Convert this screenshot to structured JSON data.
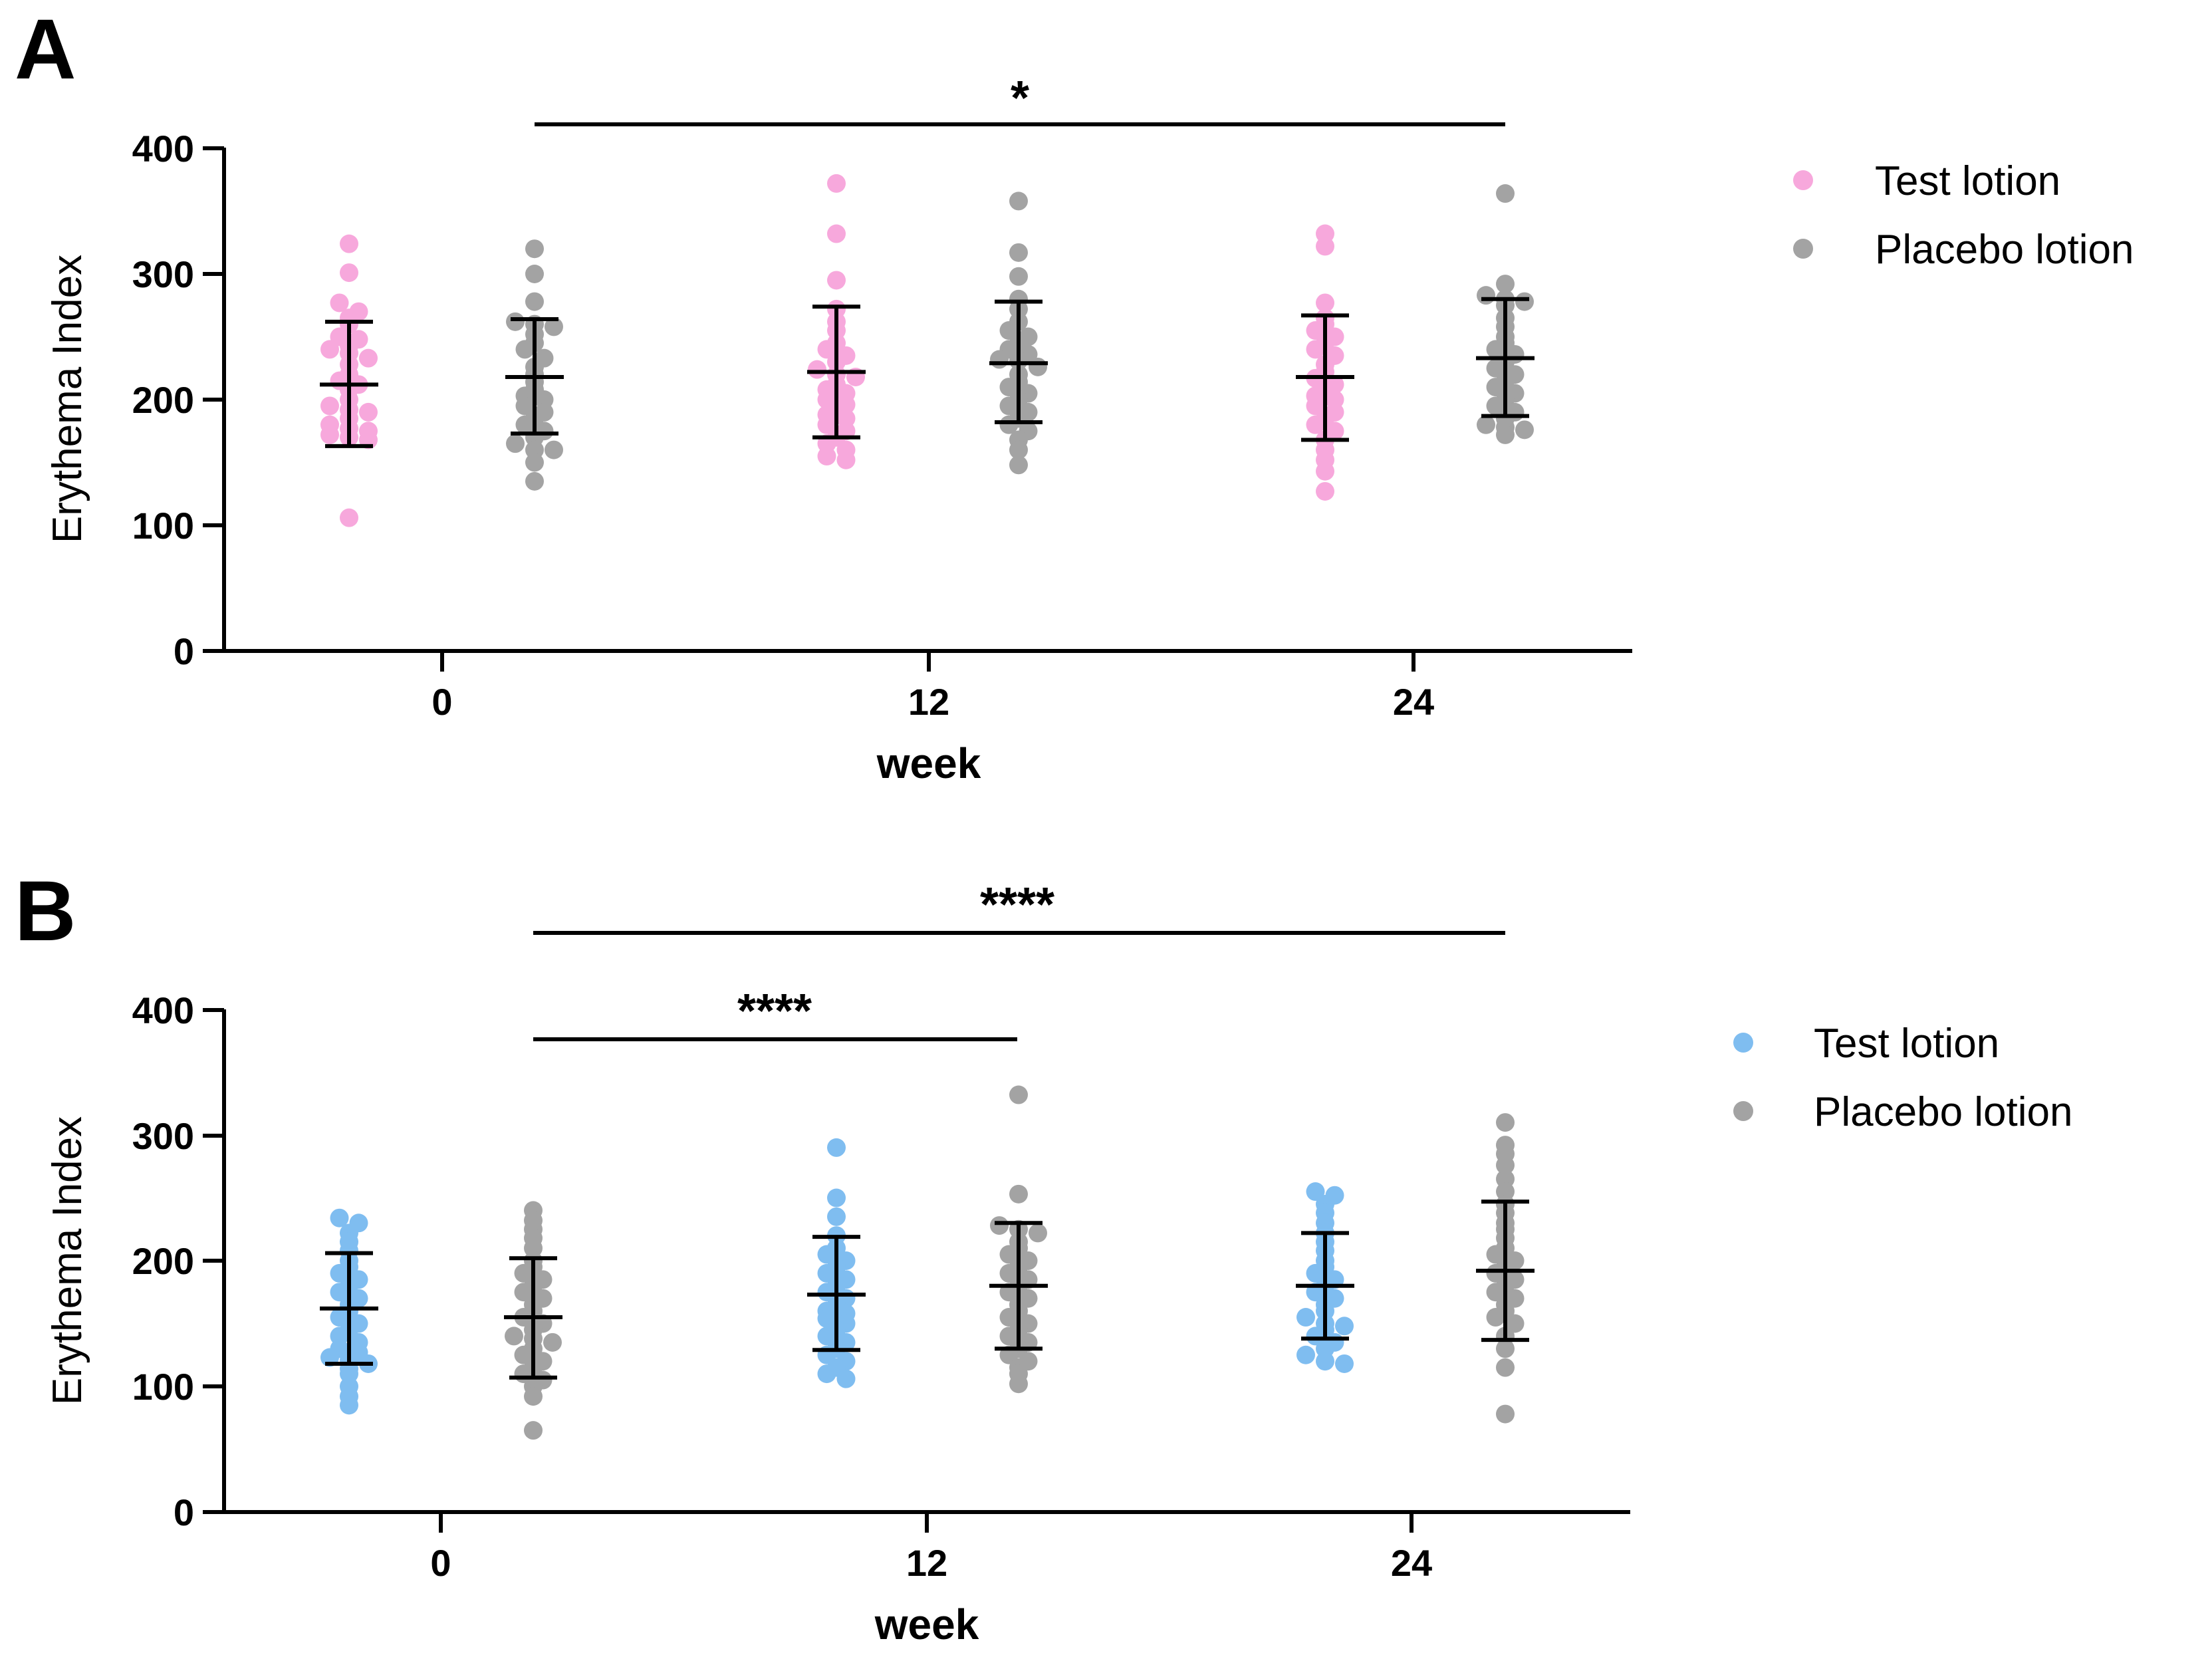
{
  "colors": {
    "test_A": "#f7a8dc",
    "test_B": "#7fbdf0",
    "placebo": "#a3a3a3",
    "axis": "#000000"
  },
  "chart_data": [
    {
      "panel": "A",
      "type": "scatter",
      "xlabel": "week",
      "ylabel": "Erythema Index",
      "ylim": [
        0,
        400
      ],
      "yticks": [
        "0",
        "100",
        "200",
        "300",
        "400"
      ],
      "categories": [
        "0",
        "12",
        "24"
      ],
      "legend": [
        "Test lotion",
        "Placebo lotion"
      ],
      "legend_position": "top-right",
      "series": [
        {
          "name": "Test lotion",
          "color_key": "test_A",
          "groups": [
            {
              "week": "0",
              "mean": 212,
              "sd_low": 163,
              "sd_high": 262,
              "values": [
                324,
                301,
                277,
                270,
                265,
                260,
                250,
                248,
                243,
                240,
                237,
                233,
                228,
                220,
                215,
                212,
                208,
                200,
                195,
                192,
                190,
                185,
                180,
                177,
                175,
                172,
                170,
                168,
                106
              ]
            },
            {
              "week": "12",
              "mean": 222,
              "sd_low": 170,
              "sd_high": 274,
              "values": [
                372,
                332,
                295,
                272,
                262,
                255,
                245,
                240,
                235,
                230,
                224,
                220,
                218,
                212,
                208,
                205,
                200,
                196,
                192,
                188,
                185,
                180,
                175,
                170,
                165,
                160,
                155,
                152
              ]
            },
            {
              "week": "24",
              "mean": 218,
              "sd_low": 168,
              "sd_high": 267,
              "values": [
                332,
                322,
                277,
                265,
                260,
                255,
                250,
                245,
                240,
                235,
                228,
                222,
                217,
                212,
                208,
                203,
                200,
                195,
                190,
                185,
                180,
                175,
                168,
                160,
                152,
                143,
                127
              ]
            }
          ]
        },
        {
          "name": "Placebo lotion",
          "color_key": "placebo",
          "groups": [
            {
              "week": "0",
              "mean": 218,
              "sd_low": 173,
              "sd_high": 264,
              "values": [
                320,
                300,
                278,
                262,
                260,
                258,
                252,
                245,
                240,
                233,
                226,
                220,
                214,
                208,
                203,
                200,
                195,
                190,
                185,
                180,
                175,
                170,
                165,
                160,
                160,
                150,
                135
              ]
            },
            {
              "week": "12",
              "mean": 229,
              "sd_low": 182,
              "sd_high": 278,
              "values": [
                358,
                317,
                298,
                280,
                272,
                262,
                255,
                250,
                245,
                240,
                236,
                232,
                231,
                226,
                220,
                214,
                210,
                205,
                200,
                195,
                190,
                185,
                180,
                175,
                168,
                160,
                148
              ]
            },
            {
              "week": "24",
              "mean": 233,
              "sd_low": 187,
              "sd_high": 280,
              "values": [
                364,
                292,
                283,
                280,
                278,
                275,
                265,
                258,
                250,
                245,
                240,
                236,
                230,
                225,
                220,
                215,
                210,
                205,
                200,
                195,
                190,
                185,
                180,
                178,
                176,
                172
              ]
            }
          ]
        }
      ],
      "significance": [
        {
          "from": "week 0 placebo",
          "to": "week 24 placebo",
          "label": "*"
        }
      ]
    },
    {
      "panel": "B",
      "type": "scatter",
      "xlabel": "week",
      "ylabel": "Erythema Index",
      "ylim": [
        0,
        400
      ],
      "yticks": [
        "0",
        "100",
        "200",
        "300",
        "400"
      ],
      "categories": [
        "0",
        "12",
        "24"
      ],
      "legend": [
        "Test lotion",
        "Placebo lotion"
      ],
      "legend_position": "top-right",
      "series": [
        {
          "name": "Test lotion",
          "color_key": "test_B",
          "groups": [
            {
              "week": "0",
              "mean": 162,
              "sd_low": 118,
              "sd_high": 206,
              "values": [
                234,
                230,
                222,
                215,
                208,
                200,
                195,
                190,
                185,
                180,
                175,
                170,
                165,
                160,
                155,
                150,
                145,
                140,
                135,
                130,
                127,
                123,
                121,
                118,
                114,
                110,
                100,
                92,
                85
              ]
            },
            {
              "week": "12",
              "mean": 173,
              "sd_low": 129,
              "sd_high": 219,
              "values": [
                290,
                250,
                235,
                220,
                210,
                205,
                200,
                195,
                190,
                185,
                180,
                175,
                170,
                165,
                160,
                158,
                154,
                150,
                145,
                140,
                135,
                130,
                125,
                120,
                115,
                110,
                106
              ]
            },
            {
              "week": "24",
              "mean": 180,
              "sd_low": 138,
              "sd_high": 222,
              "values": [
                255,
                252,
                245,
                238,
                230,
                222,
                215,
                208,
                200,
                195,
                190,
                185,
                180,
                175,
                170,
                165,
                160,
                155,
                150,
                148,
                145,
                140,
                135,
                130,
                125,
                120,
                118
              ]
            }
          ]
        },
        {
          "name": "Placebo lotion",
          "color_key": "placebo",
          "groups": [
            {
              "week": "0",
              "mean": 155,
              "sd_low": 107,
              "sd_high": 202,
              "values": [
                240,
                232,
                225,
                218,
                210,
                200,
                195,
                190,
                185,
                180,
                175,
                170,
                165,
                160,
                155,
                150,
                145,
                140,
                138,
                135,
                130,
                125,
                120,
                115,
                110,
                105,
                100,
                92,
                65
              ]
            },
            {
              "week": "12",
              "mean": 180,
              "sd_low": 130,
              "sd_high": 230,
              "values": [
                332,
                253,
                228,
                225,
                222,
                215,
                210,
                205,
                200,
                195,
                190,
                185,
                180,
                175,
                170,
                165,
                160,
                155,
                150,
                145,
                140,
                135,
                130,
                125,
                120,
                115,
                110,
                102
              ]
            },
            {
              "week": "24",
              "mean": 192,
              "sd_low": 137,
              "sd_high": 247,
              "values": [
                310,
                292,
                285,
                276,
                265,
                255,
                245,
                238,
                230,
                225,
                218,
                210,
                205,
                200,
                195,
                190,
                185,
                180,
                175,
                170,
                165,
                160,
                155,
                150,
                140,
                130,
                115,
                78
              ]
            }
          ]
        }
      ],
      "significance": [
        {
          "from": "week 0 placebo",
          "to": "week 24 placebo",
          "label": "****"
        },
        {
          "from": "week 0 placebo",
          "to": "week 12 placebo",
          "label": "****"
        }
      ]
    }
  ]
}
